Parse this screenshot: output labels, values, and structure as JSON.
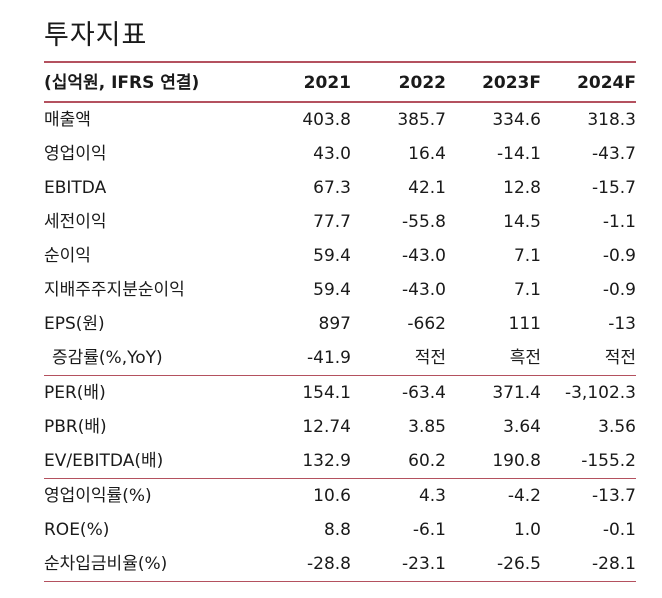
{
  "title": "투자지표",
  "table": {
    "header": {
      "label": "(십억원, IFRS 연결)",
      "years": [
        "2021",
        "2022",
        "2023F",
        "2024F"
      ]
    },
    "groups": [
      {
        "rows": [
          {
            "label": "매출액",
            "values": [
              "403.8",
              "385.7",
              "334.6",
              "318.3"
            ]
          },
          {
            "label": "영업이익",
            "values": [
              "43.0",
              "16.4",
              "-14.1",
              "-43.7"
            ]
          },
          {
            "label": "EBITDA",
            "values": [
              "67.3",
              "42.1",
              "12.8",
              "-15.7"
            ]
          },
          {
            "label": "세전이익",
            "values": [
              "77.7",
              "-55.8",
              "14.5",
              "-1.1"
            ]
          },
          {
            "label": "순이익",
            "values": [
              "59.4",
              "-43.0",
              "7.1",
              "-0.9"
            ]
          },
          {
            "label": "지배주주지분순이익",
            "values": [
              "59.4",
              "-43.0",
              "7.1",
              "-0.9"
            ]
          },
          {
            "label": "EPS(원)",
            "values": [
              "897",
              "-662",
              "111",
              "-13"
            ]
          },
          {
            "label": "증감률(%,YoY)",
            "values": [
              "-41.9",
              "적전",
              "흑전",
              "적전"
            ],
            "indent": true
          }
        ]
      },
      {
        "rows": [
          {
            "label": "PER(배)",
            "values": [
              "154.1",
              "-63.4",
              "371.4",
              "-3,102.3"
            ]
          },
          {
            "label": "PBR(배)",
            "values": [
              "12.74",
              "3.85",
              "3.64",
              "3.56"
            ]
          },
          {
            "label": "EV/EBITDA(배)",
            "values": [
              "132.9",
              "60.2",
              "190.8",
              "-155.2"
            ]
          }
        ]
      },
      {
        "rows": [
          {
            "label": "영업이익률(%)",
            "values": [
              "10.6",
              "4.3",
              "-4.2",
              "-13.7"
            ]
          },
          {
            "label": "ROE(%)",
            "values": [
              "8.8",
              "-6.1",
              "1.0",
              "-0.1"
            ]
          },
          {
            "label": "순차입금비율(%)",
            "values": [
              "-28.8",
              "-23.1",
              "-26.5",
              "-28.1"
            ]
          }
        ]
      }
    ]
  },
  "colors": {
    "accent_rule": "#b4515f",
    "text": "#1a1a1a"
  }
}
